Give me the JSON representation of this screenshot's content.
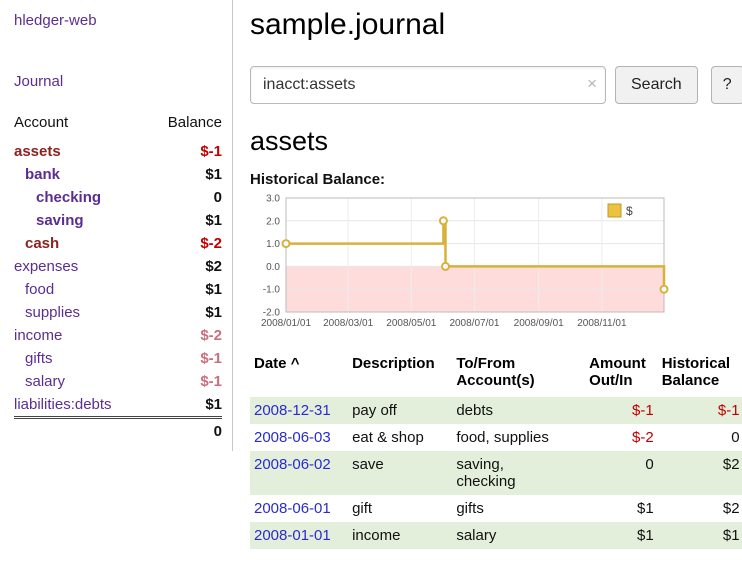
{
  "app": {
    "title": "hledger-web"
  },
  "sidebar": {
    "journal_link": "Journal",
    "col_account": "Account",
    "col_balance": "Balance",
    "accounts": [
      {
        "name": "assets",
        "balance": "$-1",
        "indent": 0,
        "name_style": "selected",
        "balance_style": "neg"
      },
      {
        "name": "bank",
        "balance": "$1",
        "indent": 1,
        "name_style": "bold",
        "balance_style": "pos"
      },
      {
        "name": "checking",
        "balance": "0",
        "indent": 2,
        "name_style": "bold",
        "balance_style": "pos"
      },
      {
        "name": "saving",
        "balance": "$1",
        "indent": 2,
        "name_style": "bold",
        "balance_style": "pos"
      },
      {
        "name": "cash",
        "balance": "$-2",
        "indent": 1,
        "name_style": "selected",
        "balance_style": "neg"
      },
      {
        "name": "expenses",
        "balance": "$2",
        "indent": 0,
        "name_style": "normal",
        "balance_style": "pos"
      },
      {
        "name": "food",
        "balance": "$1",
        "indent": 1,
        "name_style": "normal",
        "balance_style": "pos"
      },
      {
        "name": "supplies",
        "balance": "$1",
        "indent": 1,
        "name_style": "normal",
        "balance_style": "pos"
      },
      {
        "name": "income",
        "balance": "$-2",
        "indent": 0,
        "name_style": "normal",
        "balance_style": "neg-soft"
      },
      {
        "name": "gifts",
        "balance": "$-1",
        "indent": 1,
        "name_style": "normal",
        "balance_style": "neg-soft"
      },
      {
        "name": "salary",
        "balance": "$-1",
        "indent": 1,
        "name_style": "normal",
        "balance_style": "neg-soft"
      },
      {
        "name": "liabilities:debts",
        "balance": "$1",
        "indent": 0,
        "name_style": "normal",
        "balance_style": "pos"
      }
    ],
    "total": "0"
  },
  "main": {
    "title": "sample.journal",
    "search": {
      "value": "inacct:assets",
      "clear_icon": "×",
      "button_label": "Search",
      "help_label": "?"
    },
    "account_heading": "assets"
  },
  "chart_data": {
    "type": "line",
    "step": true,
    "title": "Historical Balance:",
    "legend": [
      {
        "label": "$",
        "color": "#edc240"
      }
    ],
    "legend_position": "top-right",
    "points": [
      {
        "date": "2008-01-01",
        "value": 1
      },
      {
        "date": "2008-06-01",
        "value": 2
      },
      {
        "date": "2008-06-03",
        "value": 0
      },
      {
        "date": "2008-12-31",
        "value": -1
      }
    ],
    "x_range": [
      "2008-01-01",
      "2008-12-31"
    ],
    "x_ticks": [
      "2008/01/01",
      "2008/03/01",
      "2008/05/01",
      "2008/07/01",
      "2008/09/01",
      "2008/11/01"
    ],
    "y_range": [
      -2,
      3
    ],
    "y_ticks": [
      3.0,
      2.0,
      1.0,
      0.0,
      -1.0,
      -2.0
    ],
    "grid": true,
    "line_color": "#d8b13c",
    "negative_region_color": "#ffdcdc"
  },
  "register": {
    "headers": {
      "date": "Date",
      "sort_icon": "^",
      "description": "Description",
      "accounts": "To/From\nAccount(s)",
      "amount": "Amount\nOut/In",
      "balance": "Historical\nBalance"
    },
    "rows": [
      {
        "date": "2008-12-31",
        "description": "pay off",
        "accounts": "debts",
        "amount": "$-1",
        "amount_neg": true,
        "balance": "$-1",
        "balance_neg": true,
        "shaded": true
      },
      {
        "date": "2008-06-03",
        "description": "eat & shop",
        "accounts": "food, supplies",
        "amount": "$-2",
        "amount_neg": true,
        "balance": "0",
        "balance_neg": false,
        "shaded": false
      },
      {
        "date": "2008-06-02",
        "description": "save",
        "accounts": "saving,\nchecking",
        "amount": "0",
        "amount_neg": false,
        "balance": "$2",
        "balance_neg": false,
        "shaded": true
      },
      {
        "date": "2008-06-01",
        "description": "gift",
        "accounts": "gifts",
        "amount": "$1",
        "amount_neg": false,
        "balance": "$2",
        "balance_neg": false,
        "shaded": false
      },
      {
        "date": "2008-01-01",
        "description": "income",
        "accounts": "salary",
        "amount": "$1",
        "amount_neg": false,
        "balance": "$1",
        "balance_neg": false,
        "shaded": true
      }
    ]
  },
  "colors": {
    "link_purple": "#5c2d91",
    "selected_account_red": "#8c2320",
    "negative_strong": "#c00000",
    "negative_soft": "#ca6f7e",
    "date_link_blue": "#2a2ad0",
    "row_shade_green": "#e3efdb",
    "chart_line_gold": "#d8b13c",
    "chart_negative_pink": "#ffdcdc"
  }
}
